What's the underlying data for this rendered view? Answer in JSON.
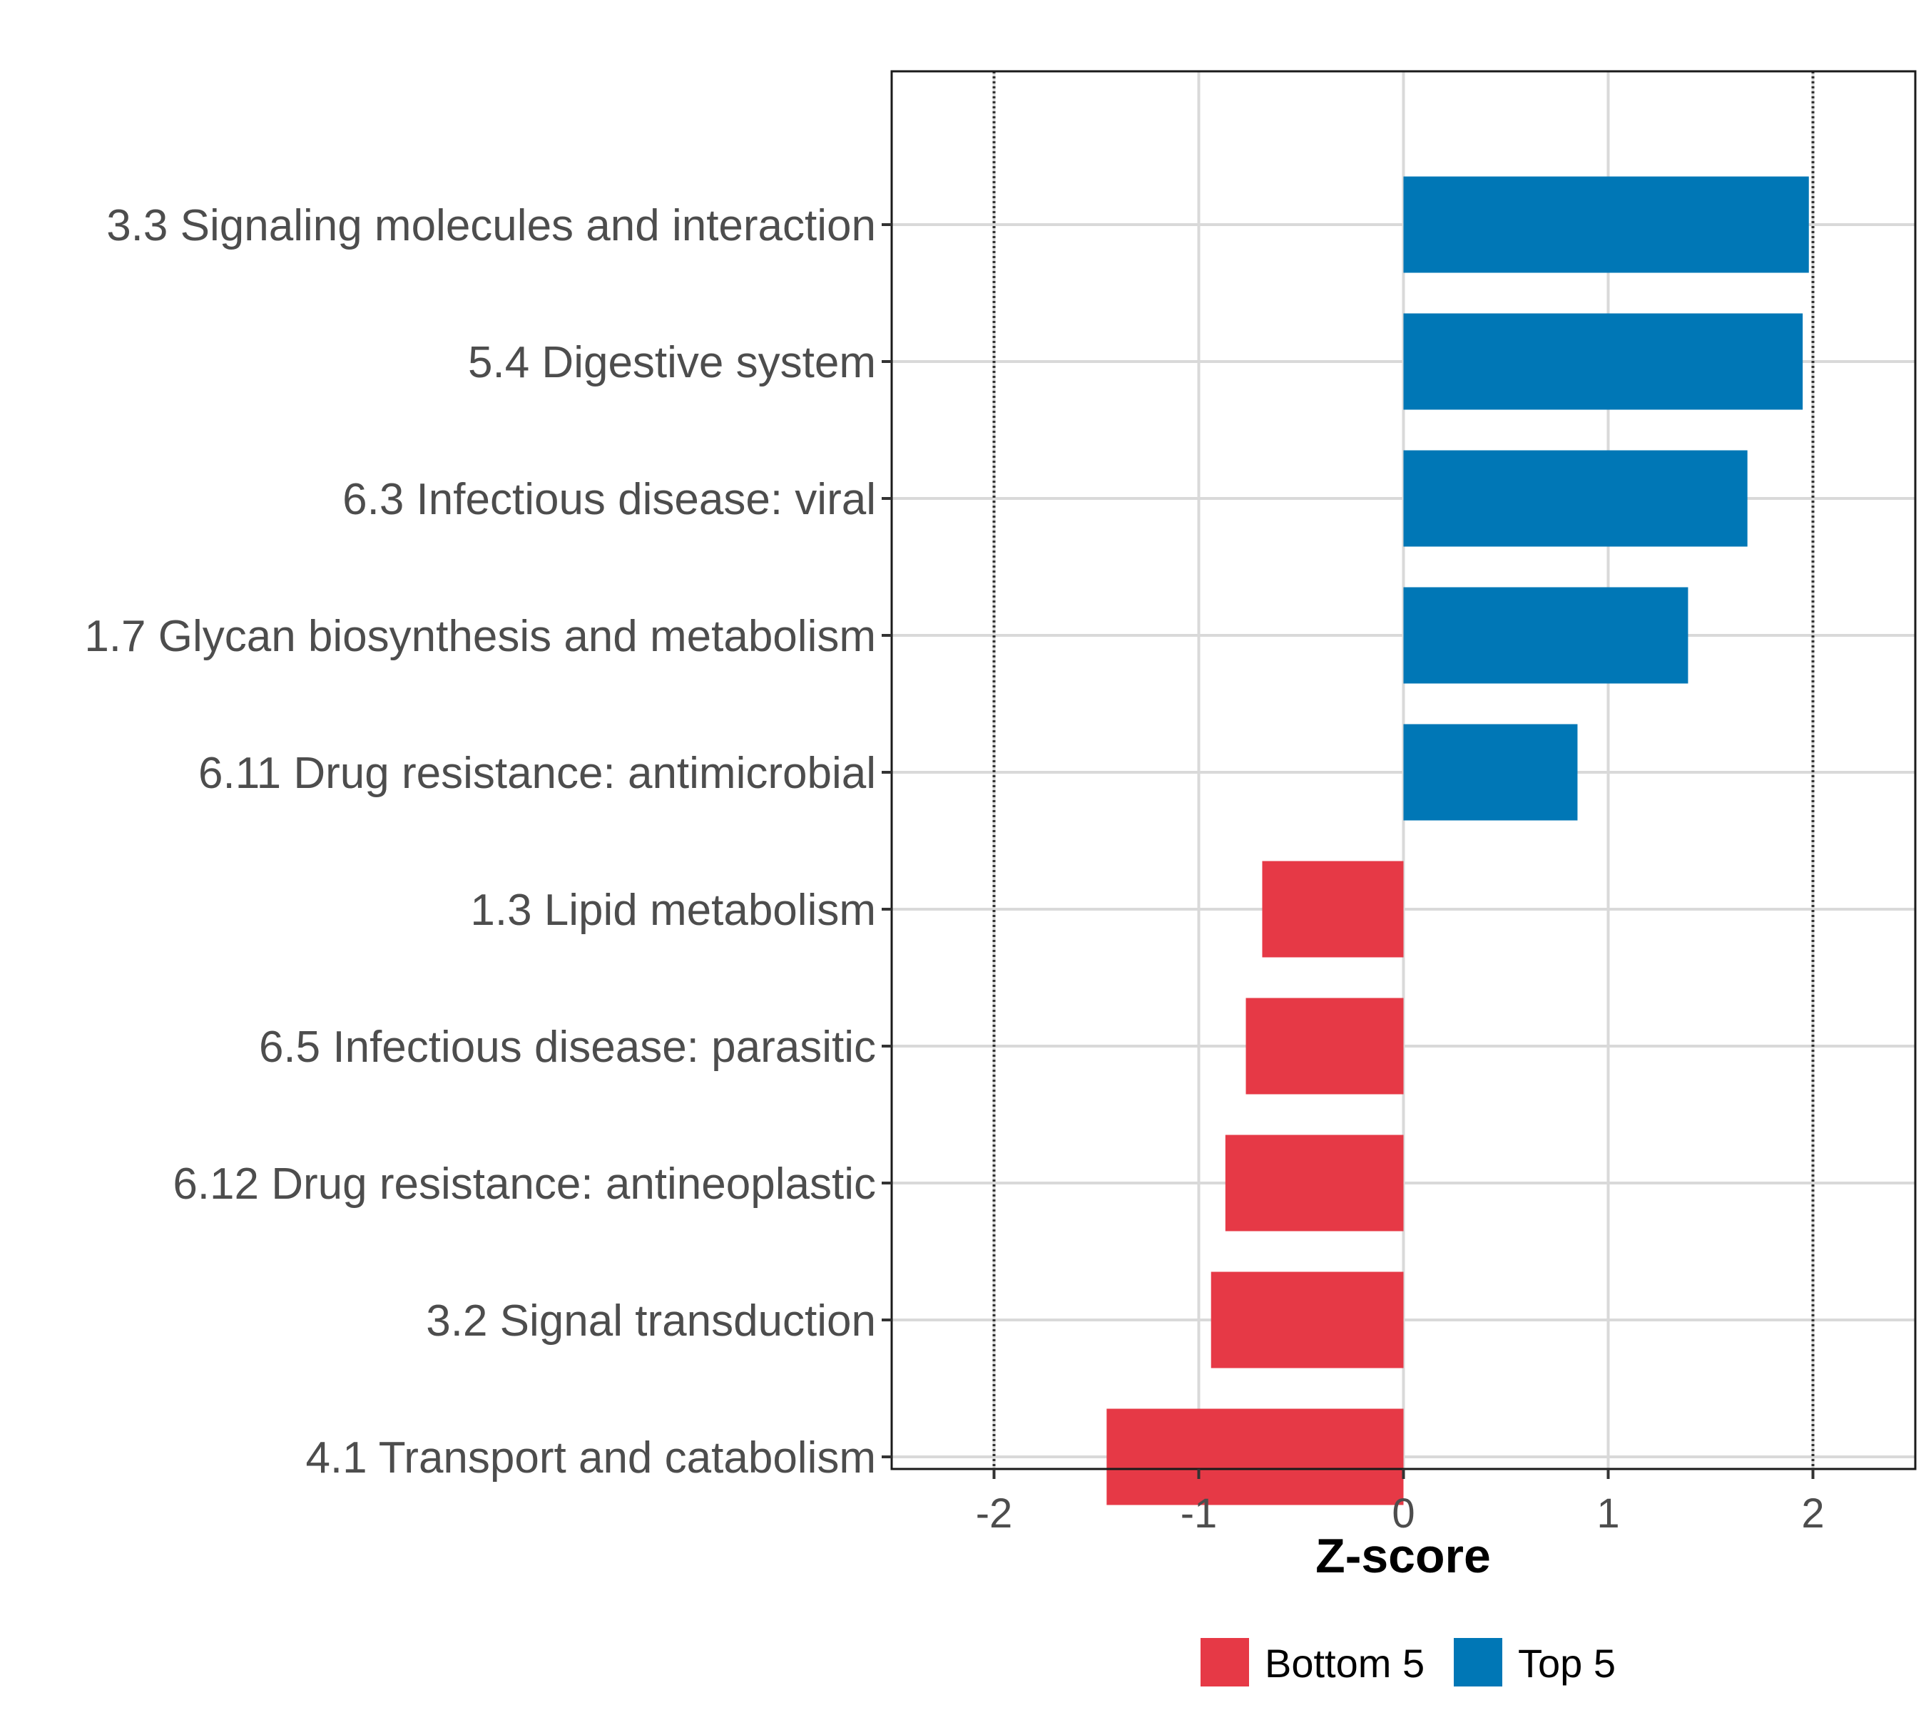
{
  "chart_data": {
    "type": "bar",
    "orientation": "horizontal",
    "categories": [
      "3.3 Signaling molecules and interaction",
      "5.4 Digestive system",
      "6.3 Infectious disease: viral",
      "1.7 Glycan biosynthesis and metabolism",
      "6.11 Drug resistance: antimicrobial",
      "1.3 Lipid metabolism",
      "6.5 Infectious disease: parasitic",
      "6.12 Drug resistance: antineoplastic",
      "3.2 Signal transduction",
      "4.1 Transport and catabolism"
    ],
    "values": [
      1.98,
      1.95,
      1.68,
      1.39,
      0.85,
      -0.69,
      -0.77,
      -0.87,
      -0.94,
      -1.45
    ],
    "groups": [
      "Top 5",
      "Top 5",
      "Top 5",
      "Top 5",
      "Top 5",
      "Bottom 5",
      "Bottom 5",
      "Bottom 5",
      "Bottom 5",
      "Bottom 5"
    ],
    "xlabel": "Z-score",
    "ylabel": "",
    "xlim": [
      -2.5,
      2.5
    ],
    "xticks": [
      -2,
      -1,
      0,
      1,
      2
    ],
    "xtick_labels": [
      "-2",
      "-1",
      "0",
      "1",
      "2"
    ],
    "reference_lines": [
      -2,
      2
    ],
    "grid": true,
    "legend": {
      "position": "bottom",
      "entries": [
        {
          "label": "Bottom 5",
          "color": "#E63946"
        },
        {
          "label": "Top 5",
          "color": "#0077B6"
        }
      ]
    },
    "colors": {
      "Bottom 5": "#E63946",
      "Top 5": "#0077B6"
    }
  }
}
